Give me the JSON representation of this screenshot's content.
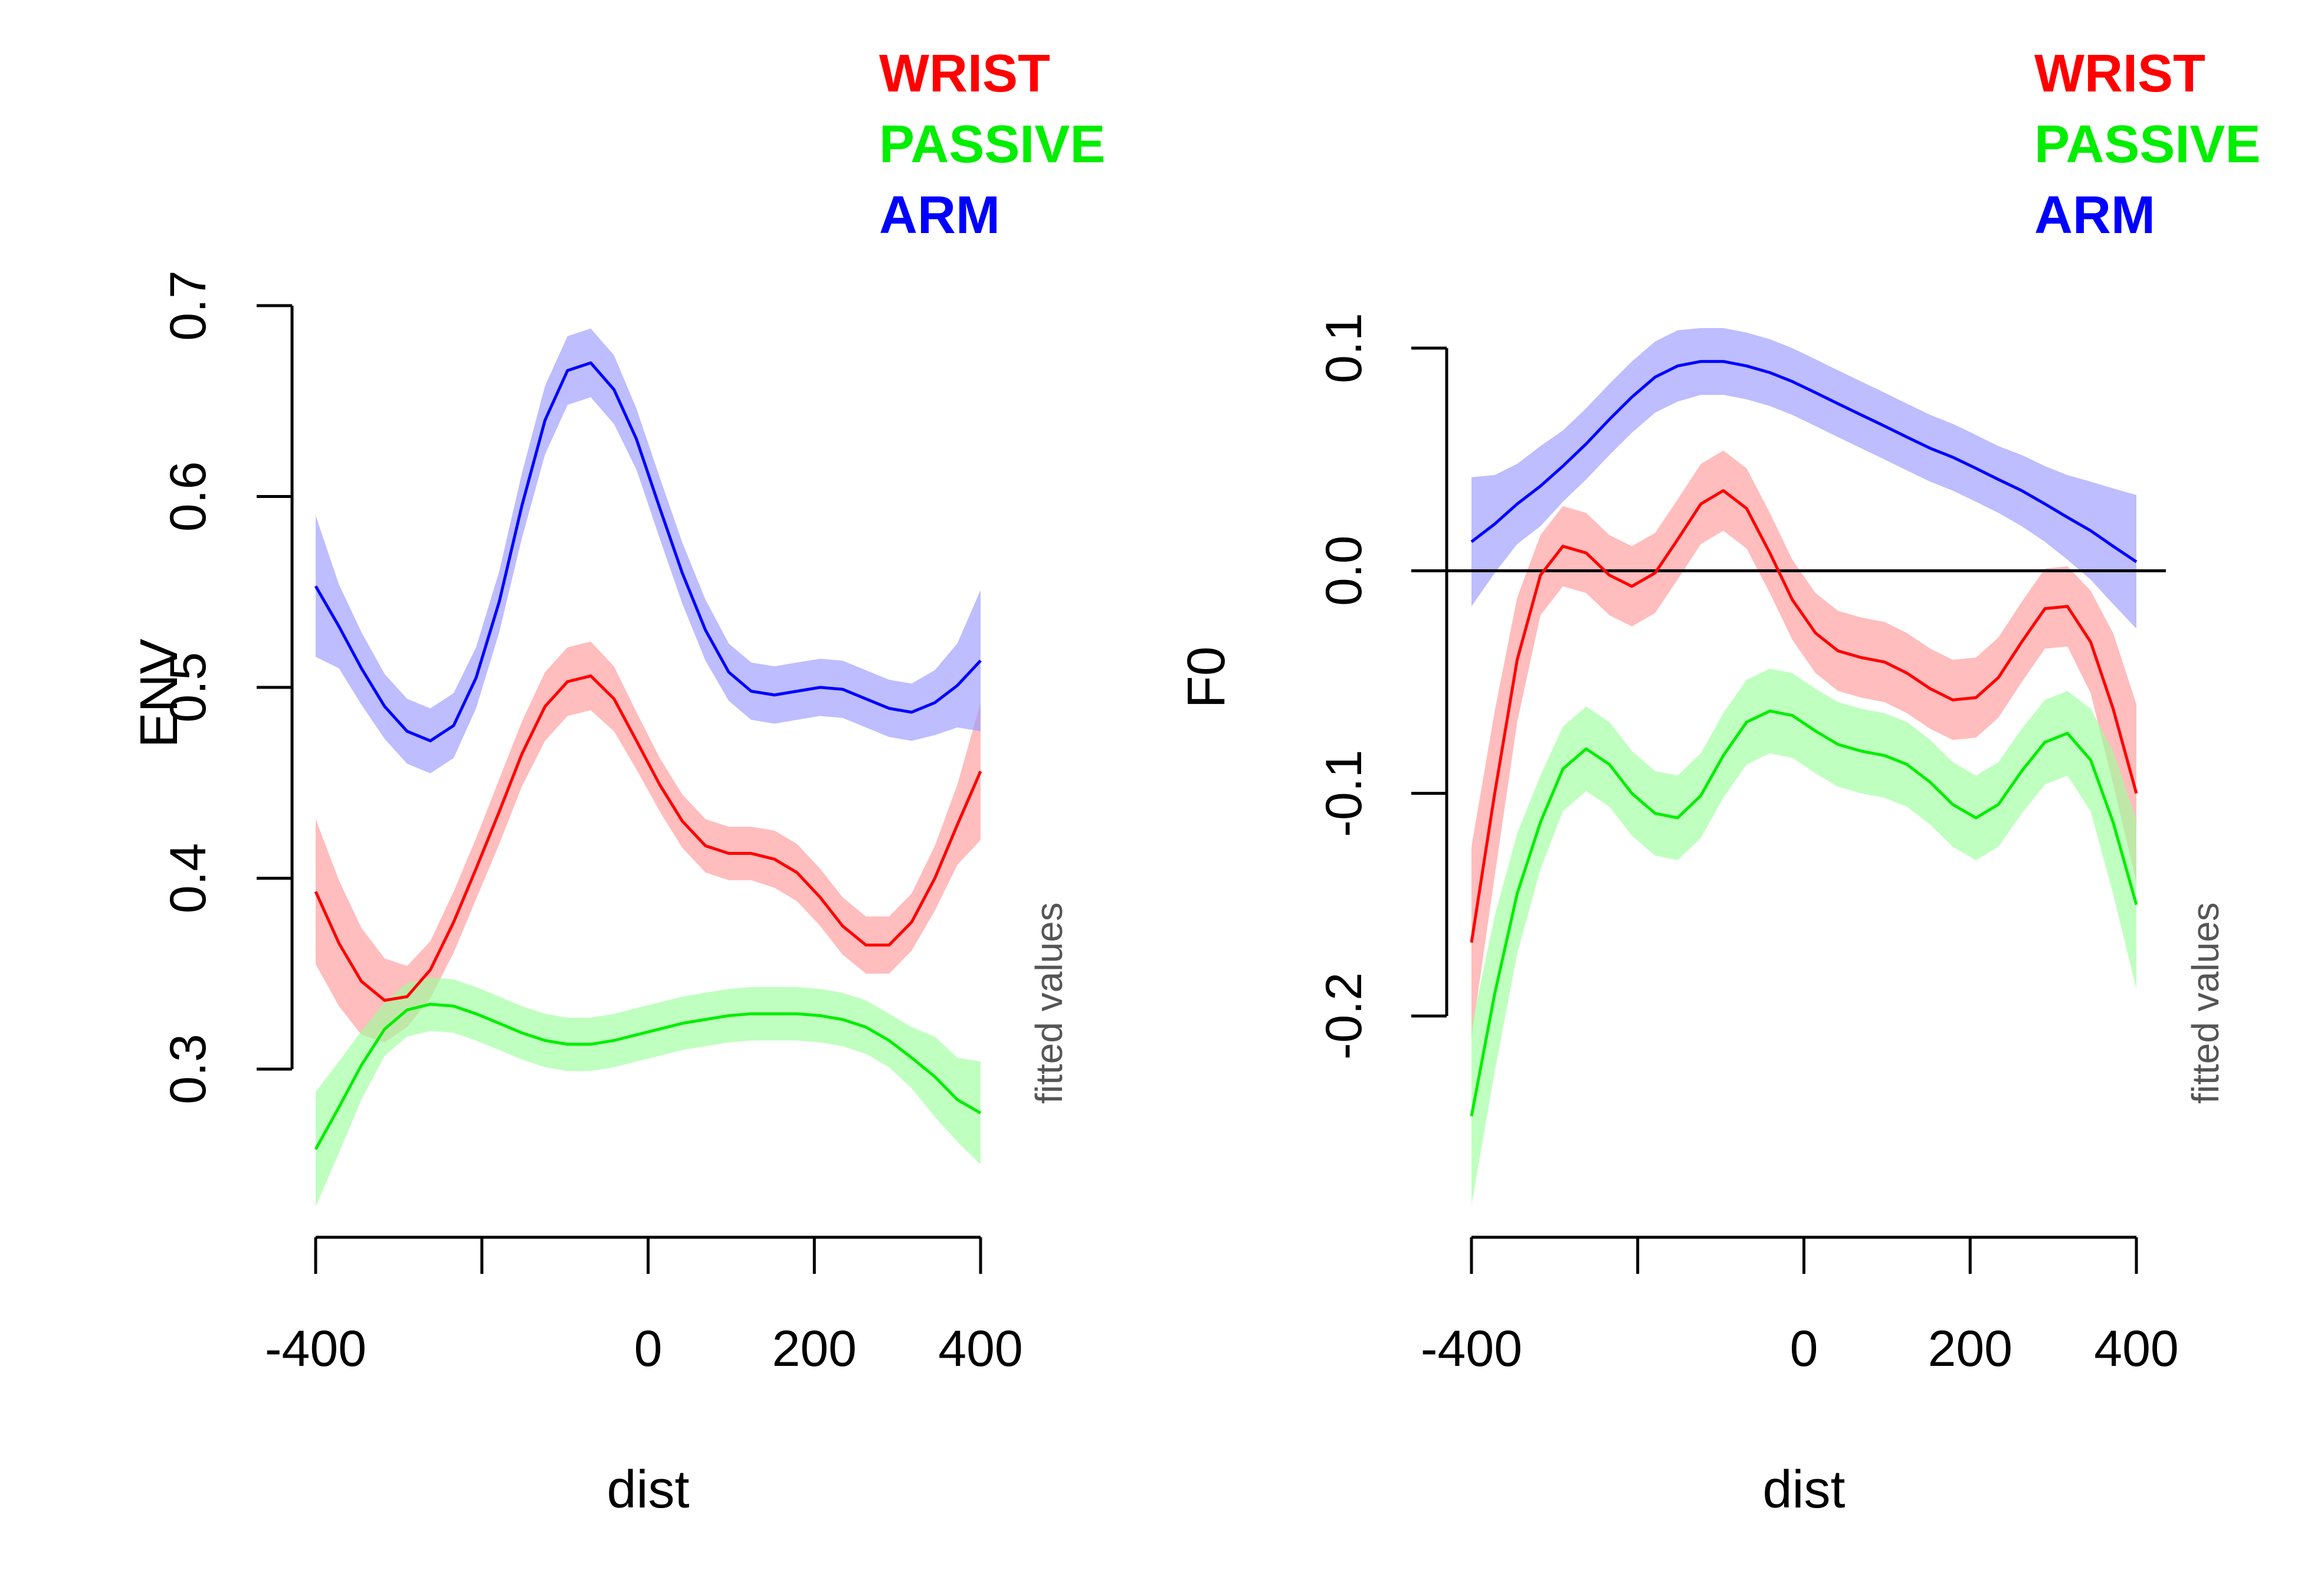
{
  "colors": {
    "wrist": "#ff0000",
    "passive": "#00ee00",
    "arm": "#0000ff",
    "wrist_band": "#ff9a9a",
    "passive_band": "#9cff9c",
    "arm_band": "#9a9aff",
    "axis": "#000000"
  },
  "chart_data": [
    {
      "type": "line",
      "xlabel": "dist",
      "ylabel": "ENV",
      "note": "fitted values",
      "xlim": [
        -400,
        400
      ],
      "ylim": [
        0.2,
        0.7
      ],
      "x_ticks": [
        -400,
        -200,
        0,
        200,
        400
      ],
      "x_tick_labels": [
        "-400",
        "",
        "0",
        "200",
        "400"
      ],
      "y_ticks": [
        0.3,
        0.4,
        0.5,
        0.6,
        0.7
      ],
      "y_tick_labels": [
        "0.3",
        "0.4",
        "0.5",
        "0.6",
        "0.7"
      ],
      "zero_line": false,
      "legend": [
        "WRIST",
        "PASSIVE",
        "ARM"
      ],
      "x": [
        -400,
        -372,
        -345,
        -317,
        -290,
        -262,
        -234,
        -207,
        -179,
        -152,
        -124,
        -97,
        -69,
        -41,
        -14,
        14,
        41,
        69,
        97,
        124,
        152,
        179,
        207,
        234,
        262,
        290,
        317,
        345,
        372,
        400
      ],
      "series": [
        {
          "name": "WRIST",
          "values": [
            0.393,
            0.366,
            0.346,
            0.336,
            0.338,
            0.352,
            0.377,
            0.405,
            0.435,
            0.465,
            0.49,
            0.503,
            0.506,
            0.494,
            0.472,
            0.449,
            0.43,
            0.417,
            0.413,
            0.413,
            0.41,
            0.403,
            0.39,
            0.375,
            0.365,
            0.365,
            0.377,
            0.4,
            0.428,
            0.456
          ],
          "lower": [
            0.355,
            0.333,
            0.318,
            0.314,
            0.322,
            0.337,
            0.361,
            0.389,
            0.418,
            0.448,
            0.472,
            0.485,
            0.488,
            0.477,
            0.457,
            0.435,
            0.416,
            0.403,
            0.399,
            0.399,
            0.395,
            0.388,
            0.375,
            0.36,
            0.35,
            0.35,
            0.362,
            0.383,
            0.407,
            0.42
          ],
          "upper": [
            0.431,
            0.399,
            0.374,
            0.358,
            0.354,
            0.367,
            0.393,
            0.421,
            0.452,
            0.482,
            0.508,
            0.521,
            0.524,
            0.511,
            0.487,
            0.463,
            0.444,
            0.431,
            0.427,
            0.427,
            0.425,
            0.418,
            0.405,
            0.39,
            0.38,
            0.38,
            0.392,
            0.417,
            0.449,
            0.492
          ]
        },
        {
          "name": "PASSIVE",
          "values": [
            0.258,
            0.28,
            0.302,
            0.321,
            0.331,
            0.334,
            0.333,
            0.329,
            0.324,
            0.319,
            0.315,
            0.313,
            0.313,
            0.315,
            0.318,
            0.321,
            0.324,
            0.326,
            0.328,
            0.329,
            0.329,
            0.329,
            0.328,
            0.326,
            0.322,
            0.315,
            0.306,
            0.296,
            0.284,
            0.277
          ],
          "lower": [
            0.228,
            0.256,
            0.284,
            0.307,
            0.317,
            0.32,
            0.319,
            0.315,
            0.31,
            0.305,
            0.301,
            0.299,
            0.299,
            0.301,
            0.304,
            0.307,
            0.31,
            0.312,
            0.314,
            0.315,
            0.315,
            0.315,
            0.314,
            0.312,
            0.308,
            0.301,
            0.29,
            0.275,
            0.262,
            0.25
          ],
          "upper": [
            0.288,
            0.304,
            0.32,
            0.335,
            0.345,
            0.348,
            0.347,
            0.343,
            0.338,
            0.333,
            0.329,
            0.327,
            0.327,
            0.329,
            0.332,
            0.335,
            0.338,
            0.34,
            0.342,
            0.343,
            0.343,
            0.343,
            0.342,
            0.34,
            0.336,
            0.329,
            0.322,
            0.317,
            0.306,
            0.304
          ]
        },
        {
          "name": "ARM",
          "values": [
            0.553,
            0.532,
            0.51,
            0.49,
            0.477,
            0.472,
            0.48,
            0.505,
            0.545,
            0.595,
            0.64,
            0.666,
            0.67,
            0.656,
            0.63,
            0.594,
            0.56,
            0.53,
            0.508,
            0.498,
            0.496,
            0.498,
            0.5,
            0.499,
            0.494,
            0.489,
            0.487,
            0.492,
            0.501,
            0.514
          ],
          "lower": [
            0.516,
            0.51,
            0.491,
            0.473,
            0.46,
            0.455,
            0.463,
            0.489,
            0.529,
            0.578,
            0.622,
            0.648,
            0.652,
            0.638,
            0.614,
            0.578,
            0.544,
            0.514,
            0.493,
            0.483,
            0.481,
            0.483,
            0.485,
            0.484,
            0.479,
            0.474,
            0.472,
            0.475,
            0.479,
            0.477
          ],
          "upper": [
            0.59,
            0.554,
            0.529,
            0.507,
            0.494,
            0.489,
            0.497,
            0.521,
            0.561,
            0.612,
            0.658,
            0.684,
            0.688,
            0.674,
            0.646,
            0.61,
            0.576,
            0.546,
            0.523,
            0.513,
            0.511,
            0.513,
            0.515,
            0.514,
            0.509,
            0.504,
            0.502,
            0.509,
            0.523,
            0.551
          ]
        }
      ]
    },
    {
      "type": "line",
      "xlabel": "dist",
      "ylabel": "F0",
      "note": "fitted values",
      "xlim": [
        -400,
        400
      ],
      "ylim": [
        -0.29,
        0.11
      ],
      "x_ticks": [
        -400,
        -200,
        0,
        200,
        400
      ],
      "x_tick_labels": [
        "-400",
        "",
        "0",
        "200",
        "400"
      ],
      "y_ticks": [
        -0.2,
        -0.1,
        0.0,
        0.1
      ],
      "y_tick_labels": [
        "-0.2",
        "-0.1",
        "0.0",
        "0.1"
      ],
      "zero_line": true,
      "legend": [
        "WRIST",
        "PASSIVE",
        "ARM"
      ],
      "x": [
        -400,
        -372,
        -345,
        -317,
        -290,
        -262,
        -234,
        -207,
        -179,
        -152,
        -124,
        -97,
        -69,
        -41,
        -14,
        14,
        41,
        69,
        97,
        124,
        152,
        179,
        207,
        234,
        262,
        290,
        317,
        345,
        372,
        400
      ],
      "series": [
        {
          "name": "WRIST",
          "values": [
            -0.167,
            -0.1,
            -0.04,
            -0.002,
            0.011,
            0.008,
            -0.002,
            -0.007,
            -0.001,
            0.014,
            0.03,
            0.036,
            0.028,
            0.008,
            -0.013,
            -0.028,
            -0.036,
            -0.039,
            -0.041,
            -0.046,
            -0.053,
            -0.058,
            -0.057,
            -0.048,
            -0.032,
            -0.017,
            -0.016,
            -0.032,
            -0.062,
            -0.1
          ],
          "lower": [
            -0.21,
            -0.137,
            -0.068,
            -0.02,
            -0.007,
            -0.01,
            -0.02,
            -0.025,
            -0.019,
            -0.004,
            0.012,
            0.018,
            0.01,
            -0.01,
            -0.031,
            -0.046,
            -0.054,
            -0.057,
            -0.059,
            -0.064,
            -0.071,
            -0.076,
            -0.075,
            -0.066,
            -0.05,
            -0.035,
            -0.034,
            -0.055,
            -0.096,
            -0.14
          ],
          "upper": [
            -0.124,
            -0.063,
            -0.012,
            0.016,
            0.029,
            0.026,
            0.016,
            0.011,
            0.017,
            0.032,
            0.048,
            0.054,
            0.046,
            0.026,
            0.005,
            -0.01,
            -0.018,
            -0.021,
            -0.023,
            -0.028,
            -0.035,
            -0.04,
            -0.039,
            -0.03,
            -0.014,
            0.001,
            0.002,
            -0.009,
            -0.028,
            -0.06
          ]
        },
        {
          "name": "PASSIVE",
          "values": [
            -0.245,
            -0.19,
            -0.145,
            -0.113,
            -0.089,
            -0.08,
            -0.087,
            -0.1,
            -0.109,
            -0.111,
            -0.101,
            -0.083,
            -0.068,
            -0.063,
            -0.065,
            -0.072,
            -0.078,
            -0.081,
            -0.083,
            -0.087,
            -0.095,
            -0.105,
            -0.111,
            -0.105,
            -0.09,
            -0.077,
            -0.073,
            -0.085,
            -0.113,
            -0.15
          ],
          "lower": [
            -0.285,
            -0.225,
            -0.172,
            -0.134,
            -0.108,
            -0.099,
            -0.106,
            -0.119,
            -0.128,
            -0.13,
            -0.12,
            -0.102,
            -0.087,
            -0.082,
            -0.084,
            -0.091,
            -0.097,
            -0.1,
            -0.102,
            -0.106,
            -0.114,
            -0.124,
            -0.13,
            -0.124,
            -0.109,
            -0.096,
            -0.092,
            -0.108,
            -0.145,
            -0.188
          ],
          "upper": [
            -0.205,
            -0.155,
            -0.118,
            -0.092,
            -0.07,
            -0.061,
            -0.068,
            -0.081,
            -0.09,
            -0.092,
            -0.082,
            -0.064,
            -0.049,
            -0.044,
            -0.046,
            -0.053,
            -0.059,
            -0.062,
            -0.064,
            -0.068,
            -0.076,
            -0.086,
            -0.092,
            -0.086,
            -0.071,
            -0.058,
            -0.054,
            -0.062,
            -0.081,
            -0.112
          ]
        },
        {
          "name": "ARM",
          "values": [
            0.013,
            0.021,
            0.03,
            0.038,
            0.047,
            0.057,
            0.068,
            0.078,
            0.087,
            0.092,
            0.094,
            0.094,
            0.092,
            0.089,
            0.085,
            0.08,
            0.075,
            0.07,
            0.065,
            0.06,
            0.055,
            0.051,
            0.046,
            0.041,
            0.036,
            0.03,
            0.024,
            0.018,
            0.011,
            0.004
          ],
          "lower": [
            -0.016,
            -0.001,
            0.012,
            0.02,
            0.031,
            0.041,
            0.052,
            0.062,
            0.071,
            0.076,
            0.079,
            0.079,
            0.077,
            0.074,
            0.07,
            0.065,
            0.06,
            0.055,
            0.05,
            0.045,
            0.04,
            0.036,
            0.031,
            0.026,
            0.02,
            0.013,
            0.005,
            -0.004,
            -0.015,
            -0.026
          ],
          "upper": [
            0.042,
            0.043,
            0.048,
            0.056,
            0.063,
            0.073,
            0.084,
            0.094,
            0.103,
            0.108,
            0.109,
            0.109,
            0.107,
            0.104,
            0.1,
            0.095,
            0.09,
            0.085,
            0.08,
            0.075,
            0.07,
            0.066,
            0.061,
            0.056,
            0.052,
            0.047,
            0.043,
            0.04,
            0.037,
            0.034
          ]
        }
      ]
    }
  ]
}
